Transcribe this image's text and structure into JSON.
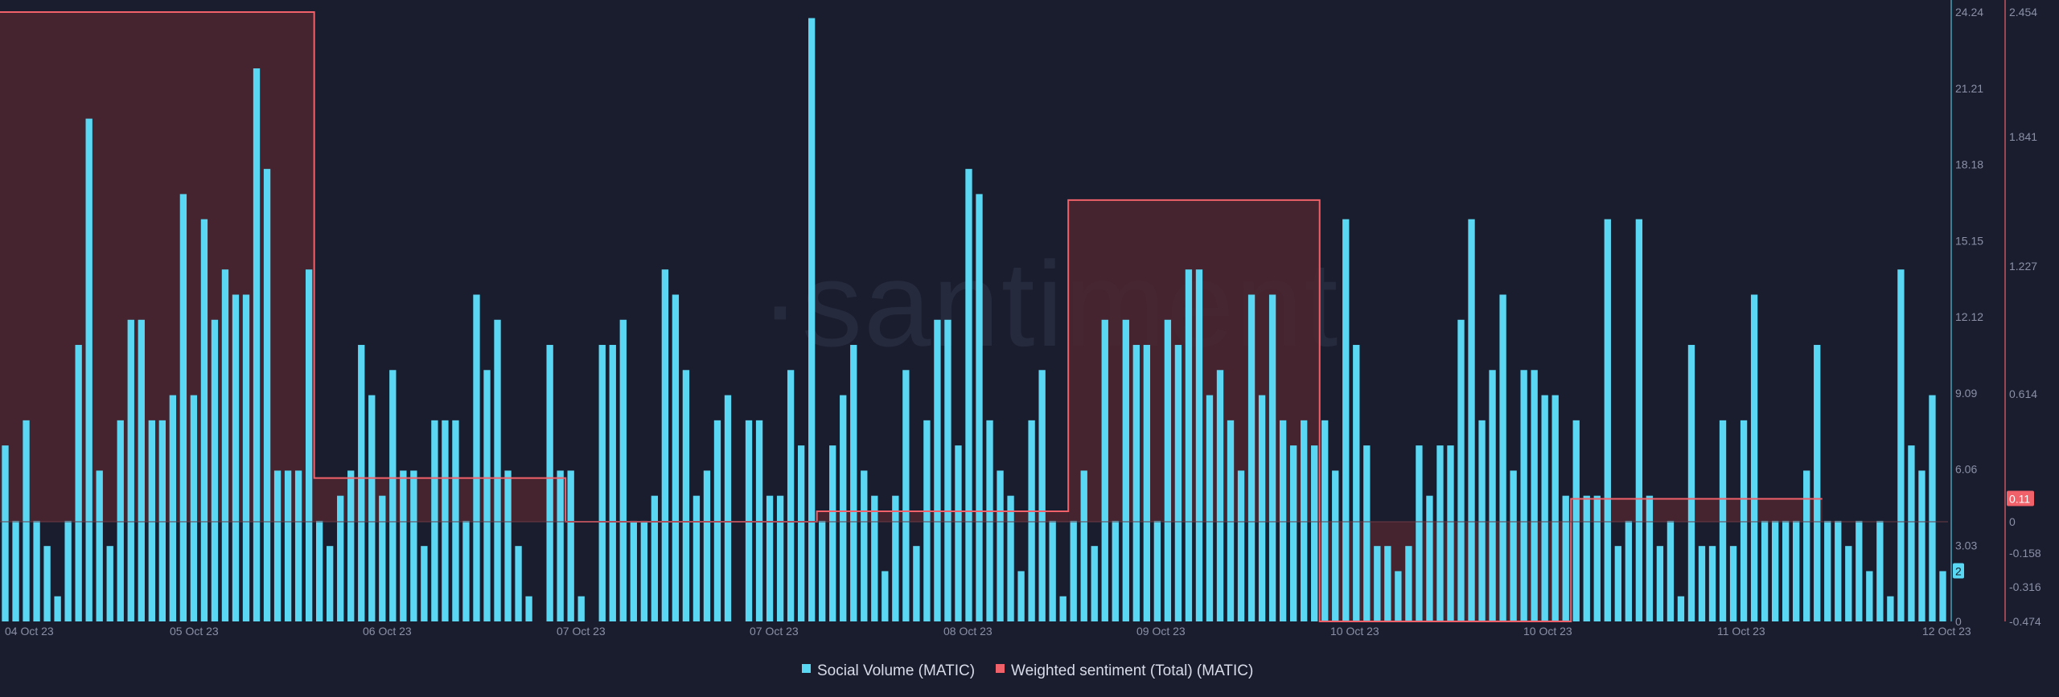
{
  "watermark": "·santiment",
  "colors": {
    "background": "#1a1d2e",
    "social_volume": "#5ad7f2",
    "sentiment": "#f0616a",
    "sentiment_fill": "#4a2630",
    "axis_tick": "#8b90a7",
    "zero_line": "#6a3a45"
  },
  "legend": [
    {
      "label": "Social Volume (MATIC)",
      "color": "#5ad7f2"
    },
    {
      "label": "Weighted sentiment (Total) (MATIC)",
      "color": "#f0616a"
    }
  ],
  "chart_data": {
    "type": "bar+line",
    "x_ticks": [
      "04 Oct 23",
      "05 Oct 23",
      "06 Oct 23",
      "07 Oct 23",
      "07 Oct 23",
      "08 Oct 23",
      "09 Oct 23",
      "10 Oct 23",
      "10 Oct 23",
      "11 Oct 23",
      "12 Oct 23"
    ],
    "y_left_ticks": [
      24.24,
      21.21,
      18.18,
      15.15,
      12.12,
      9.09,
      6.06,
      3.03,
      0
    ],
    "y_left_labels": [
      "24.24",
      "21.21",
      "18.18",
      "15.15",
      "12.12",
      "9.09",
      "6.06",
      "3.03",
      "0"
    ],
    "y_left_range": [
      0,
      24.24
    ],
    "y_right_ticks": [
      2.454,
      1.841,
      1.227,
      0.614,
      0,
      -0.158,
      -0.316,
      -0.474
    ],
    "y_right_labels": [
      "2.454",
      "1.841",
      "1.227",
      "0.614",
      "0",
      "-0.158",
      "-0.316",
      "-0.474"
    ],
    "y_right_range": [
      -0.474,
      2.454
    ],
    "current_values": {
      "social_volume": "2",
      "sentiment": "0.11"
    },
    "series": [
      {
        "name": "Social Volume (MATIC)",
        "type": "bar",
        "values": [
          7,
          4,
          8,
          4,
          3,
          1,
          4,
          11,
          20,
          6,
          3,
          8,
          12,
          12,
          8,
          8,
          9,
          17,
          9,
          16,
          12,
          14,
          13,
          13,
          22,
          18,
          6,
          6,
          6,
          14,
          4,
          3,
          5,
          6,
          11,
          9,
          5,
          10,
          6,
          6,
          3,
          8,
          8,
          8,
          4,
          13,
          10,
          12,
          6,
          3,
          1,
          0,
          11,
          6,
          6,
          1,
          0,
          11,
          11,
          12,
          4,
          4,
          5,
          14,
          13,
          10,
          5,
          6,
          8,
          9,
          0,
          8,
          8,
          5,
          5,
          10,
          7,
          24,
          4,
          7,
          9,
          11,
          6,
          5,
          2,
          5,
          10,
          3,
          8,
          12,
          12,
          7,
          18,
          17,
          8,
          6,
          5,
          2,
          8,
          10,
          4,
          1,
          4,
          6,
          3,
          12,
          4,
          12,
          11,
          11,
          4,
          12,
          11,
          14,
          14,
          9,
          10,
          8,
          6,
          13,
          9,
          13,
          8,
          7,
          8,
          7,
          8,
          6,
          16,
          11,
          7,
          3,
          3,
          2,
          3,
          7,
          5,
          7,
          7,
          12,
          16,
          8,
          10,
          13,
          6,
          10,
          10,
          9,
          9,
          5,
          8,
          5,
          5,
          16,
          3,
          4,
          16,
          5,
          3,
          4,
          1,
          11,
          3,
          3,
          8,
          3,
          8,
          13,
          4,
          4,
          4,
          4,
          6,
          11,
          4,
          4,
          3,
          4,
          2,
          4,
          1,
          14,
          7,
          6,
          9,
          2
        ],
        "color": "#5ad7f2"
      },
      {
        "name": "Weighted sentiment (Total) (MATIC)",
        "type": "step",
        "color": "#f0616a",
        "steps": [
          {
            "from": 0,
            "to": 30,
            "value": 2.454
          },
          {
            "from": 30,
            "to": 54,
            "value": 0.21
          },
          {
            "from": 54,
            "to": 78,
            "value": 0.0
          },
          {
            "from": 78,
            "to": 102,
            "value": 0.05
          },
          {
            "from": 102,
            "to": 126,
            "value": 1.54
          },
          {
            "from": 126,
            "to": 150,
            "value": -0.474
          },
          {
            "from": 150,
            "to": 174,
            "value": 0.11
          }
        ]
      }
    ]
  }
}
